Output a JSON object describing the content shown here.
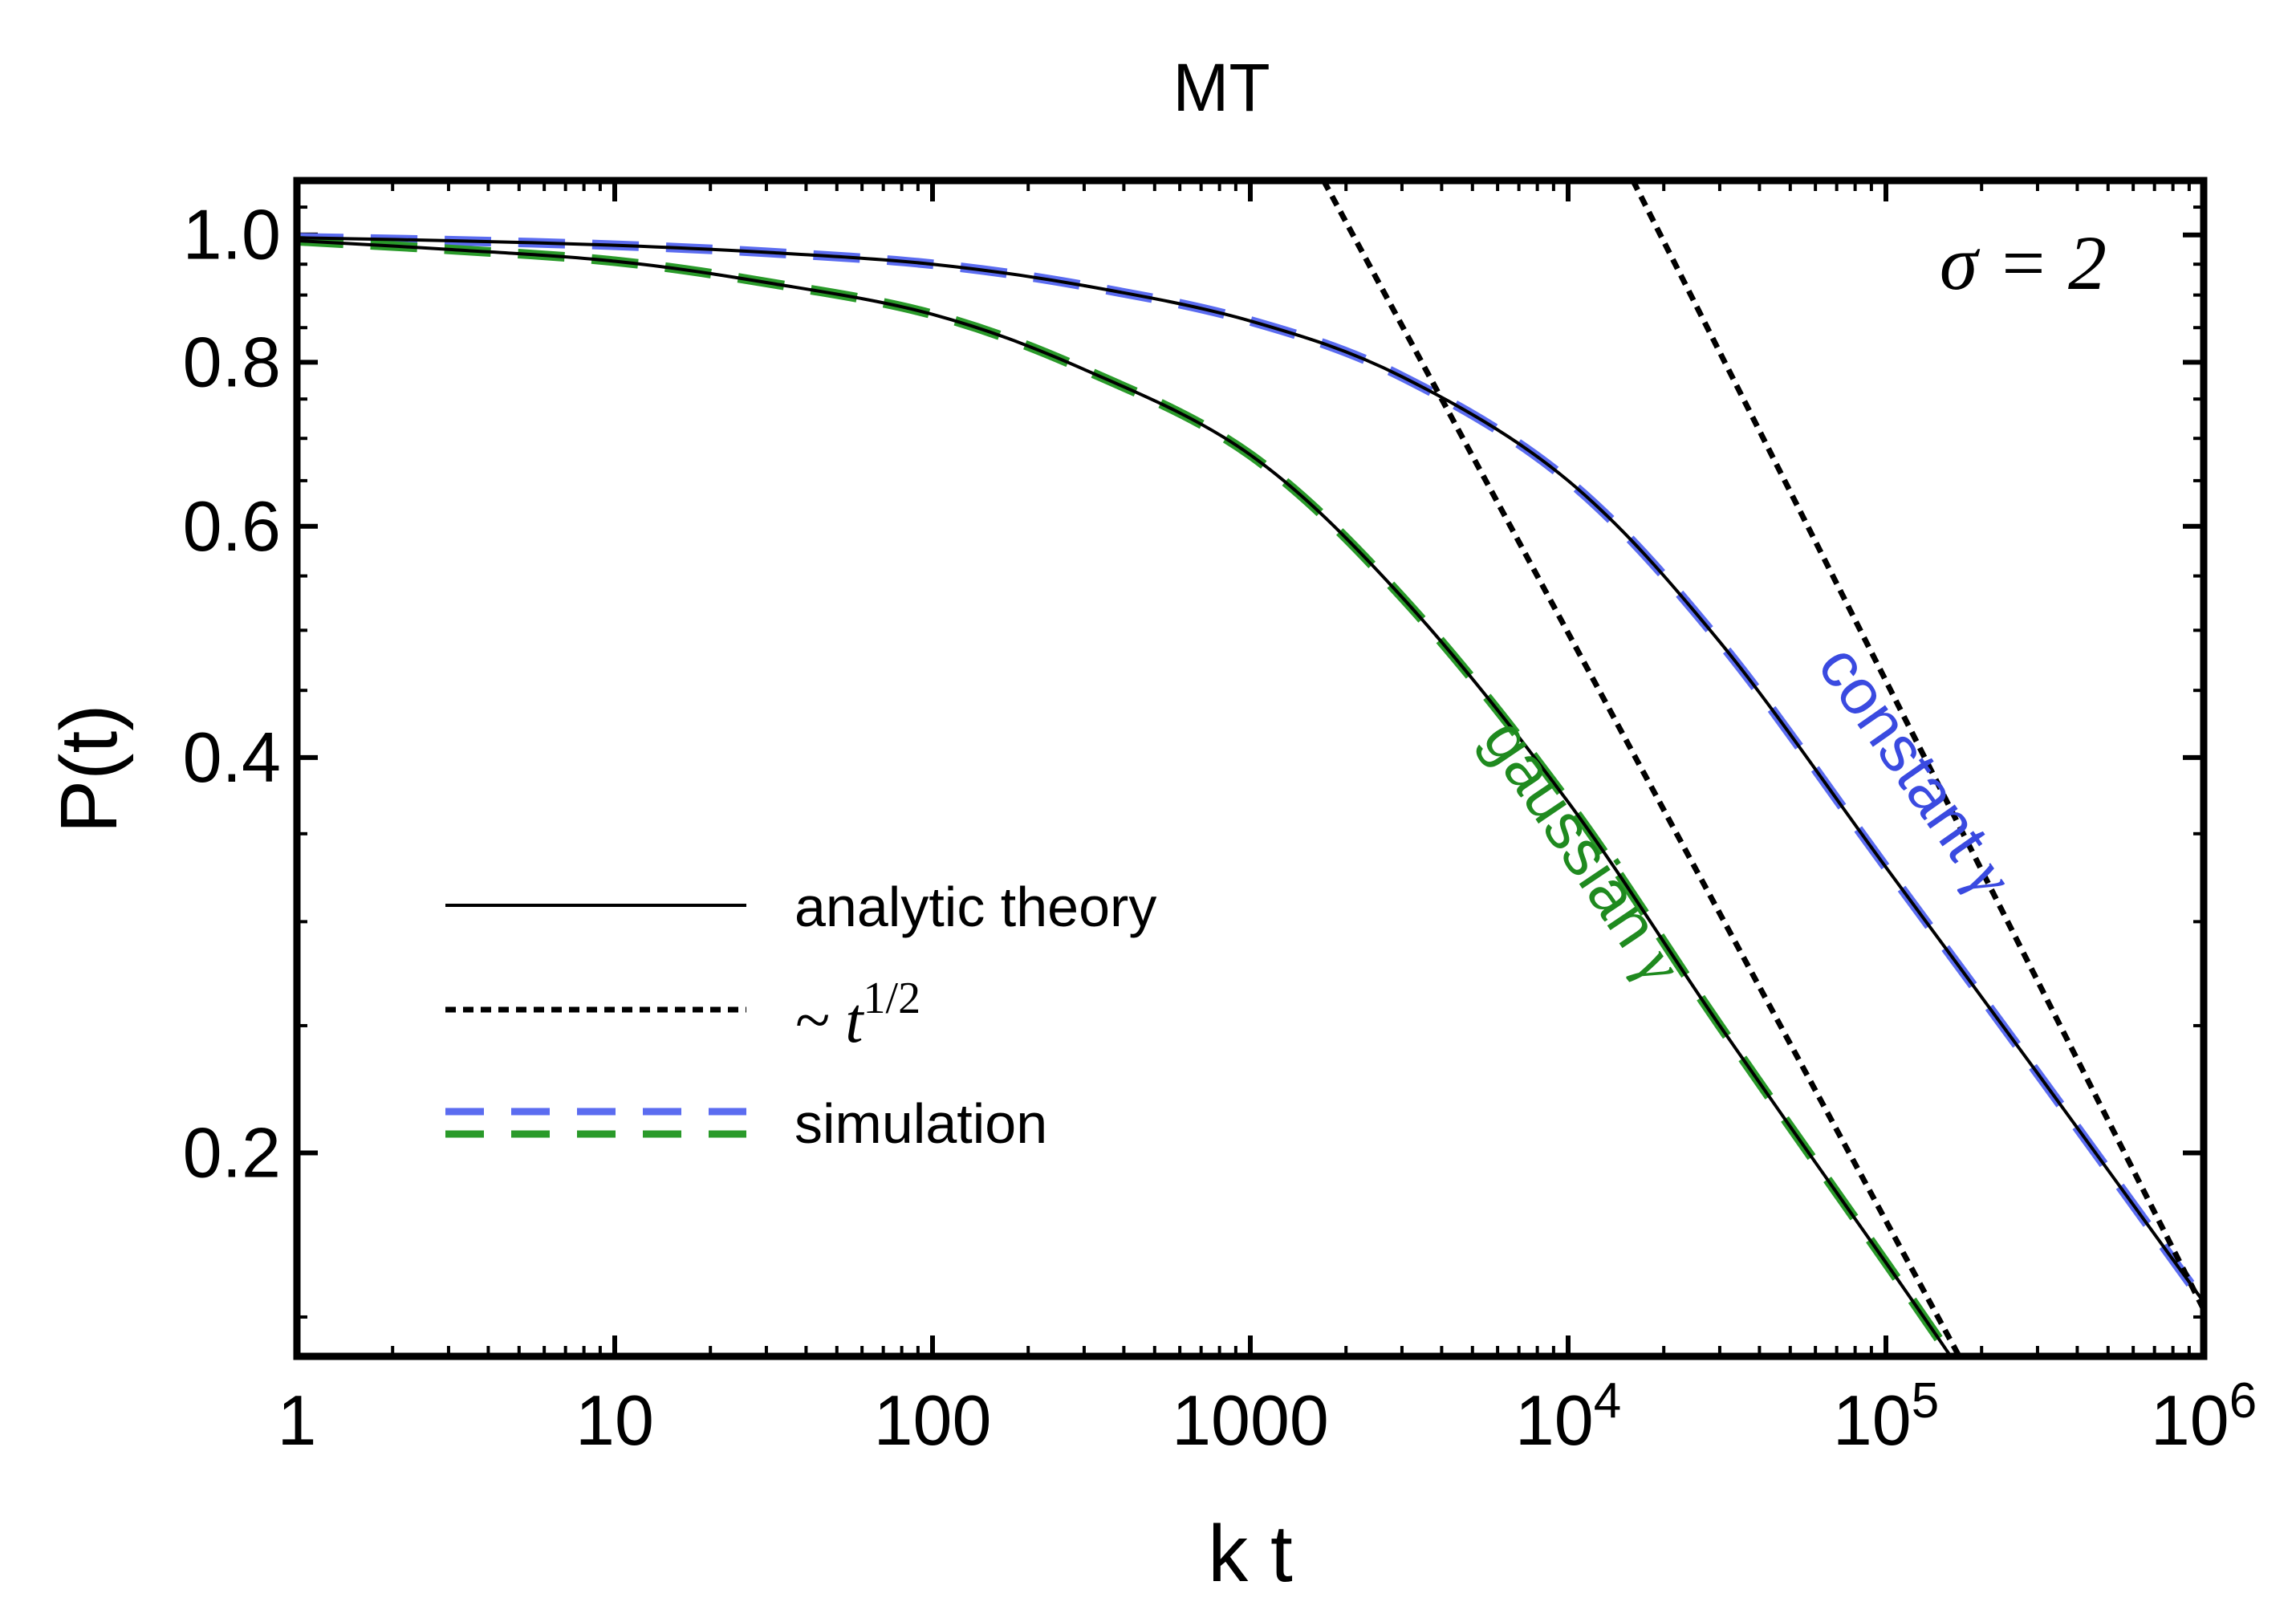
{
  "chart_data": {
    "type": "line",
    "title": "MT",
    "xlabel": "k t",
    "ylabel": "P(t)",
    "xscale": "log",
    "yscale": "log",
    "xlim": [
      1,
      1000000
    ],
    "ylim": [
      0.14,
      1.1
    ],
    "annotation": "σ = 2",
    "x_ticks": [
      {
        "value": 1,
        "base": "1",
        "exp": ""
      },
      {
        "value": 10,
        "base": "10",
        "exp": ""
      },
      {
        "value": 100,
        "base": "100",
        "exp": ""
      },
      {
        "value": 1000,
        "base": "1000",
        "exp": ""
      },
      {
        "value": 10000,
        "base": "10",
        "exp": "4"
      },
      {
        "value": 100000,
        "base": "10",
        "exp": "5"
      },
      {
        "value": 1000000,
        "base": "10",
        "exp": "6"
      }
    ],
    "y_ticks": [
      {
        "value": 1.0,
        "label": "1.0"
      },
      {
        "value": 0.8,
        "label": "0.8"
      },
      {
        "value": 0.6,
        "label": "0.6"
      },
      {
        "value": 0.4,
        "label": "0.4"
      },
      {
        "value": 0.2,
        "label": "0.2"
      }
    ],
    "y_minor_ticks": [
      0.15,
      0.25,
      0.3,
      0.35,
      0.45,
      0.5,
      0.55,
      0.65,
      0.7,
      0.75,
      0.85,
      0.9,
      0.95,
      1.05
    ],
    "series": [
      {
        "name": "constant γ — analytic theory",
        "group": "constant",
        "style": "solid",
        "color": "#000000",
        "x": [
          1,
          3,
          10,
          30,
          100,
          300,
          1000,
          3000,
          10000,
          30000,
          100000,
          300000,
          1000000
        ],
        "y": [
          0.995,
          0.99,
          0.982,
          0.97,
          0.95,
          0.915,
          0.86,
          0.78,
          0.65,
          0.49,
          0.33,
          0.23,
          0.154
        ]
      },
      {
        "name": "constant γ — simulation",
        "group": "constant",
        "style": "dashed",
        "color": "#5b6cf0",
        "x": [
          1,
          3,
          10,
          30,
          100,
          300,
          1000,
          3000,
          10000,
          30000,
          100000,
          300000,
          1000000
        ],
        "y": [
          0.995,
          0.99,
          0.982,
          0.97,
          0.95,
          0.915,
          0.86,
          0.78,
          0.65,
          0.49,
          0.33,
          0.23,
          0.154
        ]
      },
      {
        "name": "gaussian γ — analytic theory",
        "group": "gaussian",
        "style": "solid",
        "color": "#000000",
        "x": [
          1,
          3,
          10,
          30,
          100,
          300,
          1000,
          3000,
          10000,
          30000,
          100000,
          160000
        ],
        "y": [
          0.99,
          0.975,
          0.955,
          0.92,
          0.87,
          0.79,
          0.68,
          0.53,
          0.37,
          0.25,
          0.165,
          0.14
        ]
      },
      {
        "name": "gaussian γ — simulation",
        "group": "gaussian",
        "style": "dashed",
        "color": "#2a9a2a",
        "x": [
          1,
          3,
          10,
          30,
          100,
          300,
          1000,
          3000,
          10000,
          30000,
          100000,
          160000
        ],
        "y": [
          0.99,
          0.975,
          0.955,
          0.92,
          0.87,
          0.79,
          0.68,
          0.53,
          0.37,
          0.25,
          0.165,
          0.14
        ]
      },
      {
        "name": "~ t^1/2 (gaussian)",
        "group": "asymptote",
        "style": "dotted",
        "color": "#000000",
        "x": [
          1700,
          170000
        ],
        "y": [
          1.1,
          0.14
        ]
      },
      {
        "name": "~ t^1/2 (constant)",
        "group": "asymptote",
        "style": "dotted",
        "color": "#000000",
        "x": [
          16000,
          1000000
        ],
        "y": [
          1.1,
          0.152
        ]
      }
    ],
    "curve_labels": [
      {
        "text": "constant",
        "symbol": "γ",
        "color": "#3a4ae0"
      },
      {
        "text": "gaussian",
        "symbol": "γ",
        "color": "#1f8a1f"
      }
    ],
    "legend": {
      "placement": "bottom-left",
      "entries": [
        {
          "label": "analytic theory",
          "math": "",
          "sup": "",
          "style": "solid"
        },
        {
          "label": "",
          "math": "~ t",
          "sup": "1/2",
          "style": "dotted"
        },
        {
          "label": "simulation",
          "math": "",
          "sup": "",
          "style": "dashed-pair"
        }
      ]
    },
    "colors": {
      "constant": "#5b6cf0",
      "gaussian": "#2a9a2a",
      "axis": "#000000"
    }
  }
}
